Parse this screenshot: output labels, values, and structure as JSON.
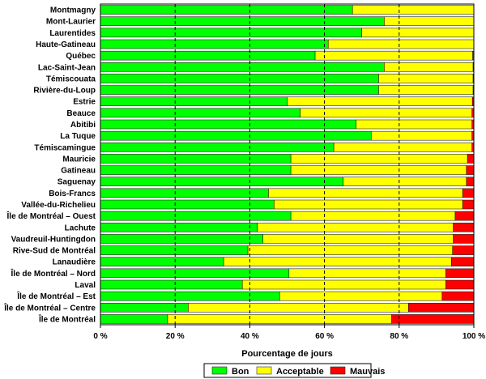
{
  "chart_data": {
    "type": "bar",
    "orientation": "horizontal",
    "stacked": true,
    "title": "",
    "xlabel": "Pourcentage de jours",
    "ylabel": "",
    "xlim": [
      0,
      100
    ],
    "xticks": [
      "0 %",
      "20 %",
      "40 %",
      "60 %",
      "80 %",
      "100 %"
    ],
    "grid": "vertical dashed",
    "legend_position": "bottom",
    "categories": [
      "Montmagny",
      "Mont-Laurier",
      "Laurentides",
      "Haute-Gatineau",
      "Québec",
      "Lac-Saint-Jean",
      "Témiscouata",
      "Rivière-du-Loup",
      "Estrie",
      "Beauce",
      "Abitibi",
      "La Tuque",
      "Témiscamingue",
      "Mauricie",
      "Gatineau",
      "Saguenay",
      "Bois-Francs",
      "Vallée-du-Richelieu",
      "Île de Montréal – Ouest",
      "Lachute",
      "Vaudreuil-Huntingdon",
      "Rive-Sud de Montréal",
      "Lanaudière",
      "Île de Montréal – Nord",
      "Laval",
      "Île de Montréal – Est",
      "Île de Montréal – Centre",
      "Île de Montréal"
    ],
    "series": [
      {
        "name": "Bon",
        "color": "#00ff00",
        "values": [
          67.5,
          76,
          70,
          61,
          57.5,
          76,
          74.5,
          74.5,
          50,
          53.5,
          68.5,
          72.5,
          62.5,
          51,
          51,
          65,
          45,
          46.5,
          51,
          42,
          43.5,
          39.5,
          33,
          50.5,
          38,
          48,
          23.5,
          18
        ]
      },
      {
        "name": "Acceptable",
        "color": "#ffff00",
        "values": [
          32.5,
          24,
          30,
          39,
          42.2,
          23.8,
          25.3,
          25.3,
          49.6,
          46,
          31,
          27,
          37,
          47.3,
          47,
          33,
          52,
          50.5,
          44,
          52.5,
          51,
          54.8,
          61,
          42,
          54.5,
          43.5,
          59,
          60
        ]
      },
      {
        "name": "Mauvais",
        "color": "#ff0000",
        "values": [
          0,
          0,
          0,
          0,
          0.3,
          0.2,
          0.2,
          0.2,
          0.4,
          0.5,
          0.5,
          0.5,
          0.5,
          1.7,
          2,
          2,
          3,
          3,
          5,
          5.5,
          5.5,
          5.7,
          6,
          7.5,
          7.5,
          8.5,
          17.5,
          22
        ]
      }
    ]
  }
}
